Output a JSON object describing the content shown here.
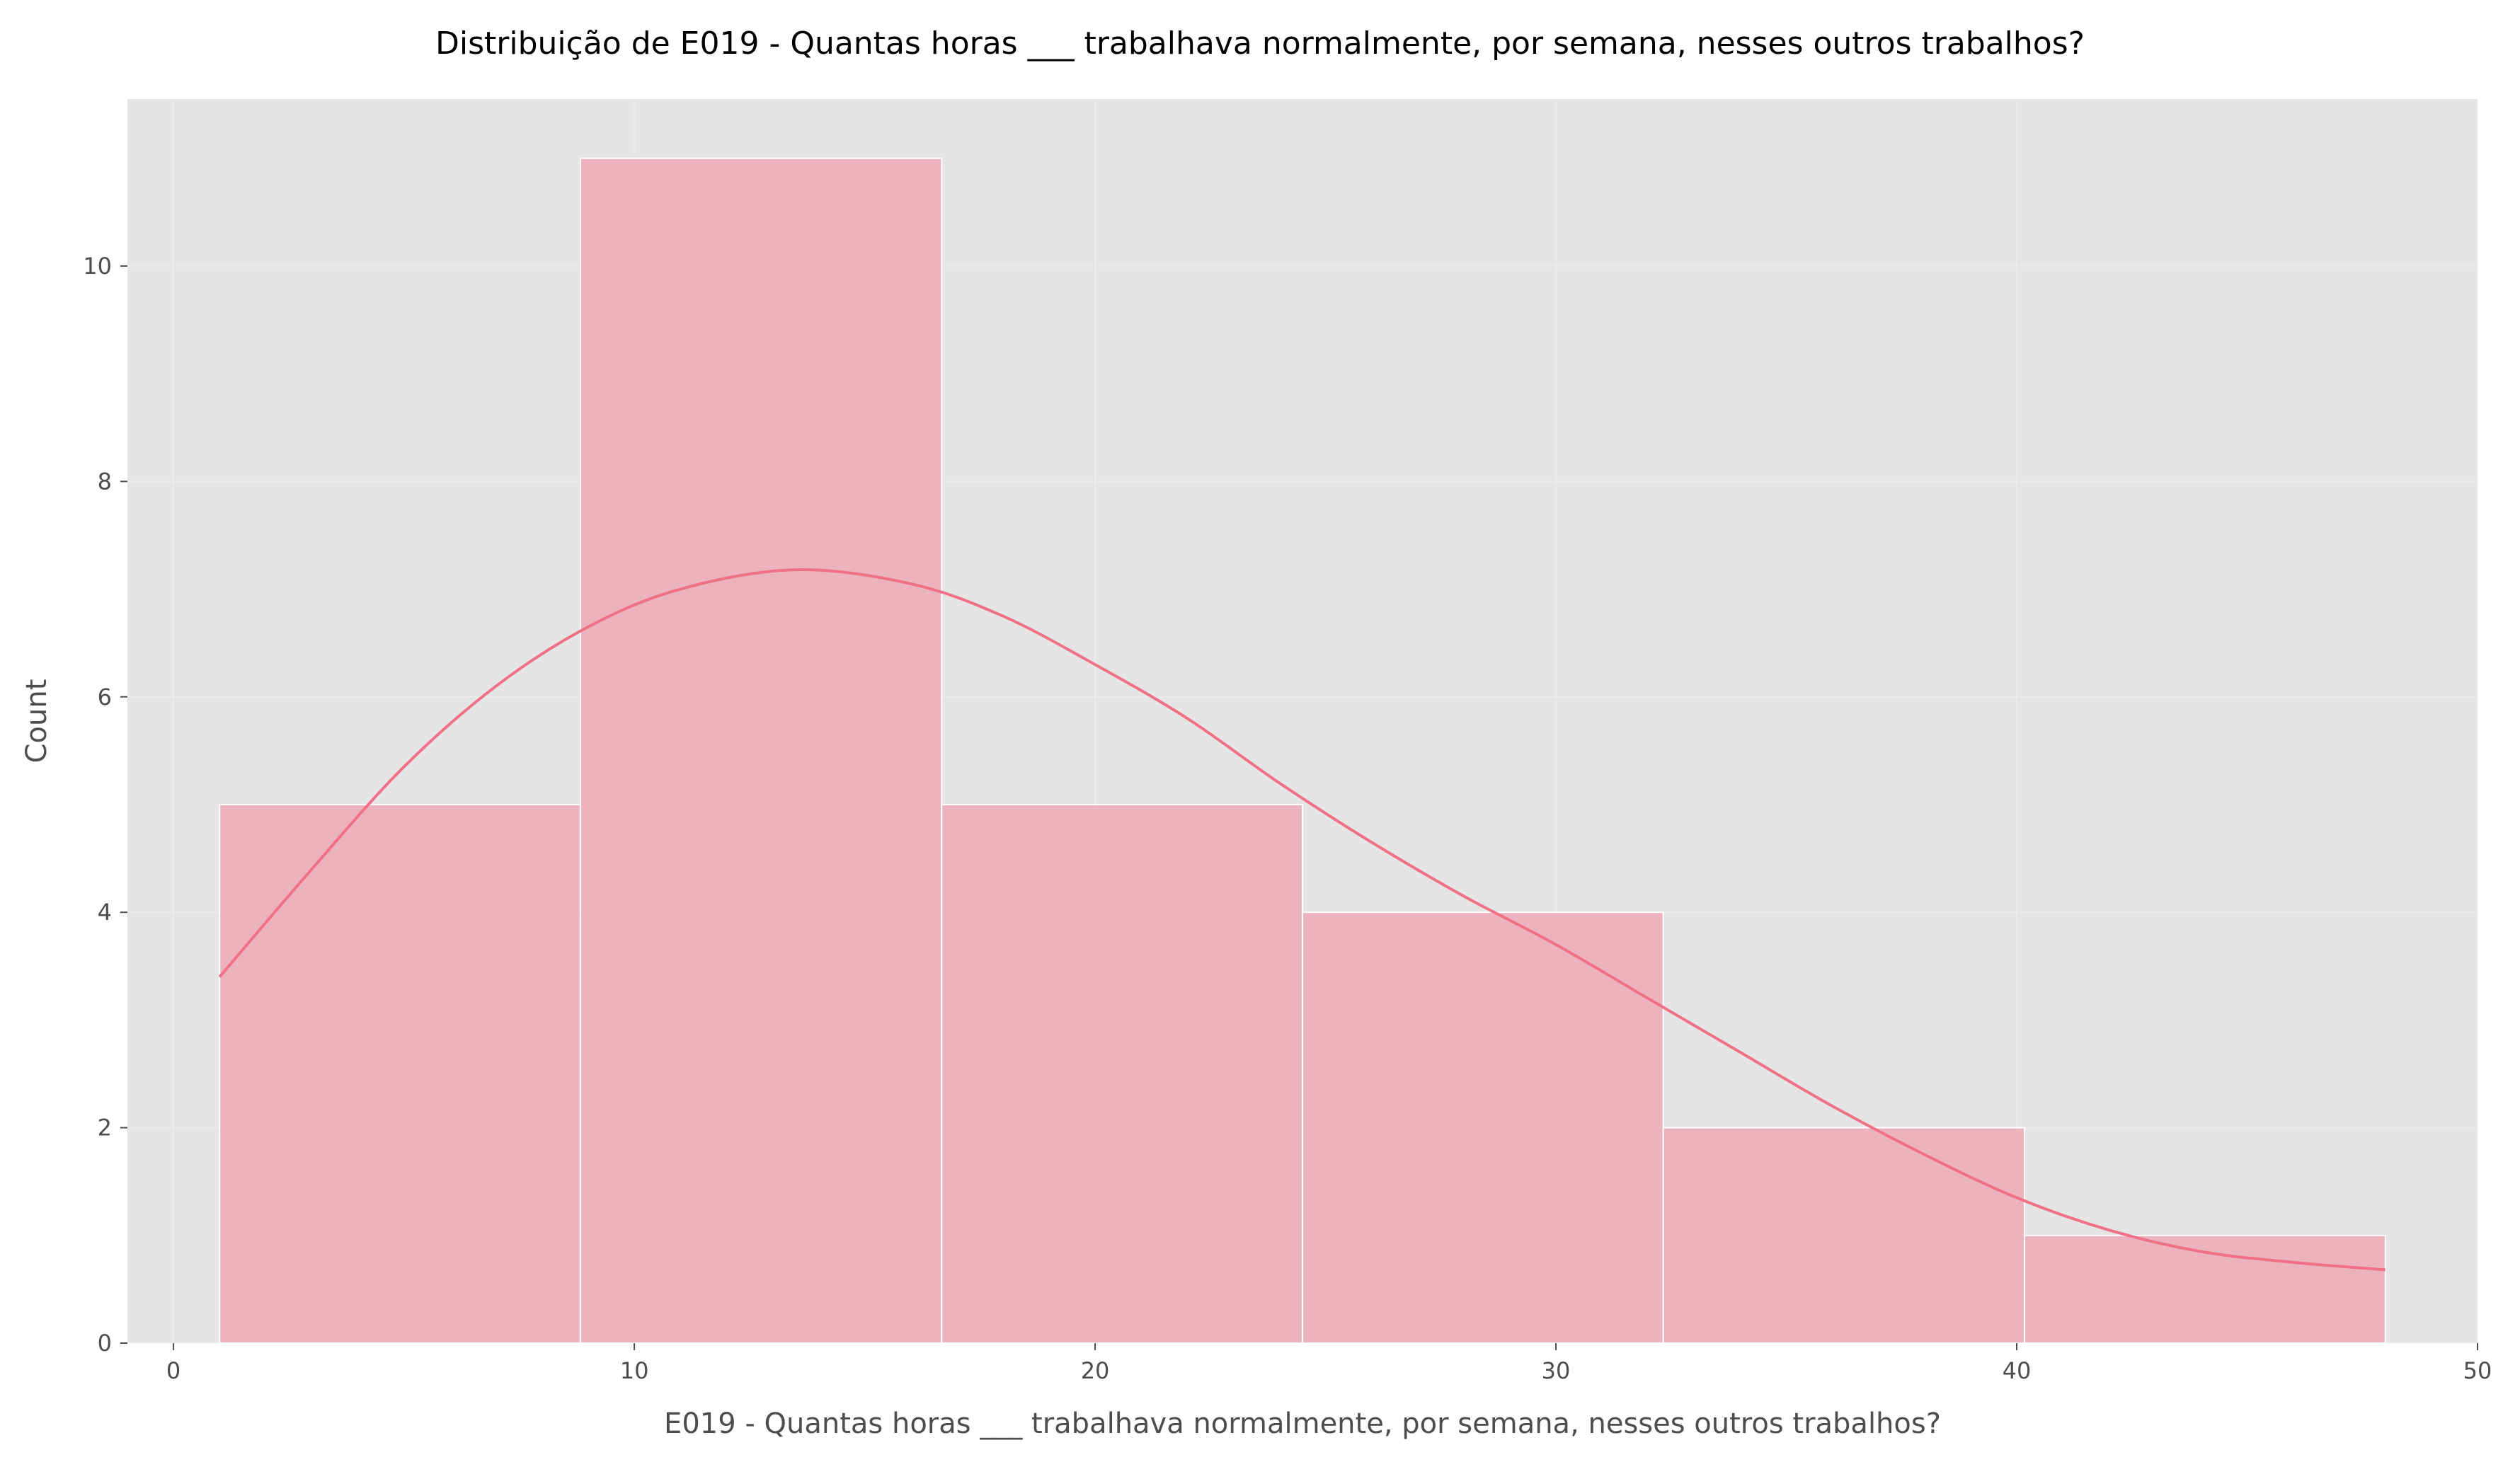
{
  "chart_data": {
    "type": "bar",
    "subtype": "histogram-with-kde",
    "title": "Distribuição de E019 - Quantas horas ___ trabalhava normalmente, por semana, nesses outros trabalhos?",
    "xlabel": "E019 - Quantas horas ___ trabalhava normalmente, por semana, nesses outros trabalhos?",
    "ylabel": "Count",
    "xlim": [
      -1,
      50
    ],
    "ylim": [
      0,
      11.55
    ],
    "xticks": [
      0,
      10,
      20,
      30,
      40,
      50
    ],
    "yticks": [
      0,
      2,
      4,
      6,
      8,
      10
    ],
    "grid": true,
    "bins": [
      {
        "x0": 1.0,
        "x1": 8.83,
        "count": 5
      },
      {
        "x0": 8.83,
        "x1": 16.67,
        "count": 11
      },
      {
        "x0": 16.67,
        "x1": 24.5,
        "count": 5
      },
      {
        "x0": 24.5,
        "x1": 32.33,
        "count": 4
      },
      {
        "x0": 32.33,
        "x1": 40.17,
        "count": 2
      },
      {
        "x0": 40.17,
        "x1": 48.0,
        "count": 1
      }
    ],
    "kde": {
      "x": [
        1,
        3,
        5,
        7,
        9,
        11,
        13.5,
        16,
        18,
        20,
        22,
        24,
        26,
        28,
        30,
        32,
        34,
        36,
        38,
        40,
        42,
        44,
        46,
        48
      ],
      "y": [
        3.4,
        4.4,
        5.35,
        6.1,
        6.65,
        7.0,
        7.18,
        7.05,
        6.75,
        6.3,
        5.8,
        5.2,
        4.65,
        4.15,
        3.7,
        3.2,
        2.7,
        2.2,
        1.75,
        1.35,
        1.05,
        0.85,
        0.75,
        0.68
      ]
    },
    "colors": {
      "bar": "#f2889c",
      "kde": "#f07088",
      "plot_background": "#e5e5e5"
    }
  }
}
